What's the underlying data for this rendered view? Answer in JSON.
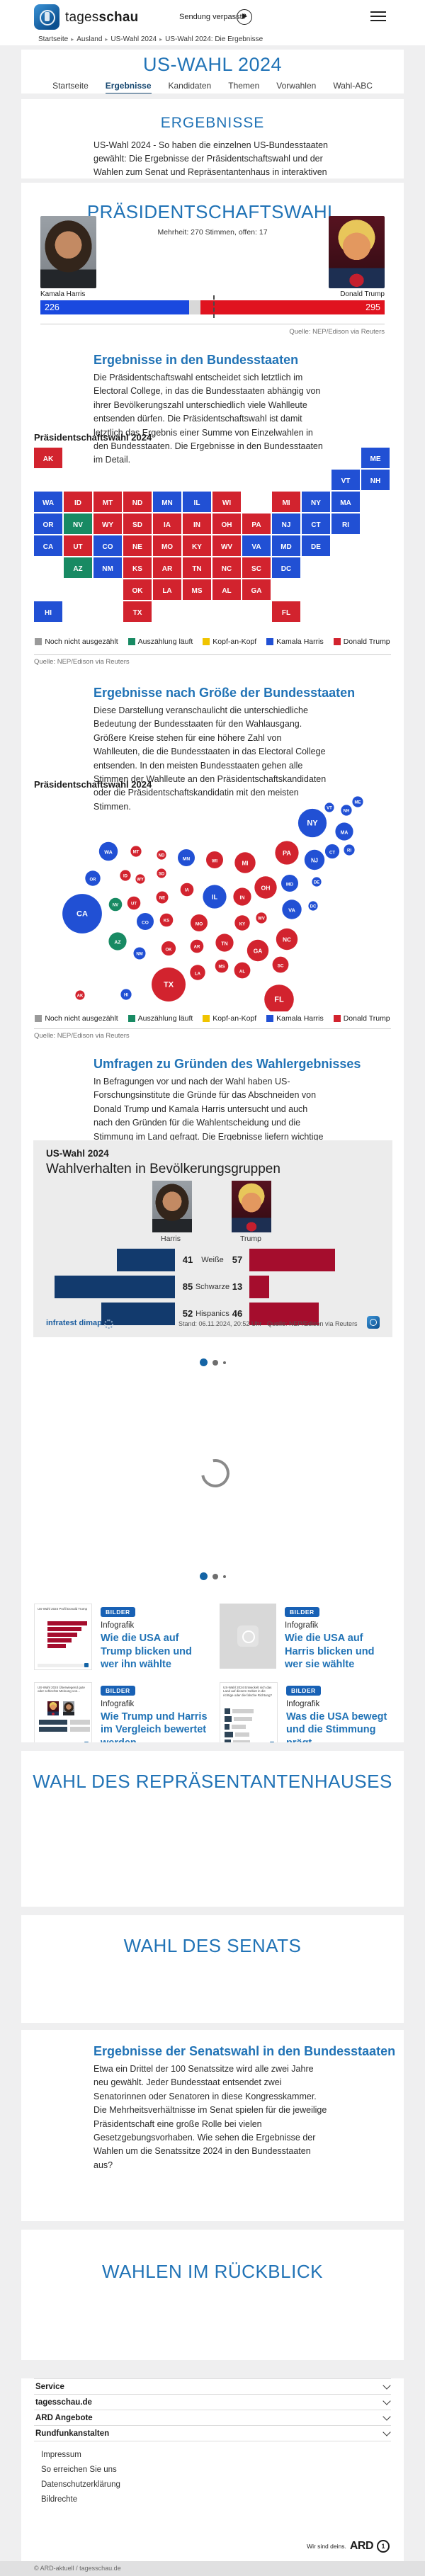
{
  "header": {
    "brand_light": "tages",
    "brand_bold": "schau",
    "sendung": "Sendung verpasst?",
    "breadcrumb": [
      "Startseite",
      "Ausland",
      "US-Wahl 2024",
      "US-Wahl 2024: Die Ergebnisse"
    ]
  },
  "hub": {
    "title": "US-WAHL 2024",
    "tabs": [
      {
        "label": "Startseite",
        "active": false
      },
      {
        "label": "Ergebnisse",
        "active": true
      },
      {
        "label": "Kandidaten",
        "active": false
      },
      {
        "label": "Themen",
        "active": false
      },
      {
        "label": "Vorwahlen",
        "active": false
      },
      {
        "label": "Wahl-ABC",
        "active": false
      }
    ]
  },
  "intro": {
    "heading": "ERGEBNISSE",
    "text": "US-Wahl 2024 - So haben die einzelnen US-Bundesstaaten gewählt: Die Ergebnisse der Präsidentschaftswahl und der Wahlen zum Senat und Repräsentantenhaus in interaktiven Grafiken."
  },
  "praesident": {
    "heading": "PRÄSIDENTSCHAFTSWAHL",
    "majority_note": "Mehrheit: 270 Stimmen, offen: 17",
    "harris_name": "Kamala Harris",
    "harris_votes": "226",
    "trump_name": "Donald Trump",
    "trump_votes": "295",
    "open_votes": 17,
    "total_votes": 538,
    "majority": 270,
    "source": "Quelle: NEP/Edison via Reuters"
  },
  "states_section": {
    "heading": "Ergebnisse in den Bundesstaaten",
    "text": "Die Präsidentschaftswahl entscheidet sich letztlich im Electoral College, in das die Bundesstaaten abhängig von ihrer Bevölkerungszahl unterschiedlich viele Wahlleute entsenden dürfen. Die Präsidentschaftswahl ist damit letztlich das Ergebnis einer Summe von Einzelwahlen in den Bundesstaaten. Die Ergebnisse in den Bundesstaaten im Detail.",
    "chart_label": "Präsidentschaftswahl 2024",
    "source": "Quelle: NEP/Edison via Reuters"
  },
  "size_section": {
    "heading": "Ergebnisse nach Größe der Bundesstaaten",
    "text": "Diese Darstellung veranschaulicht die unterschiedliche Bedeutung der Bundesstaaten für den Wahlausgang. Größere Kreise stehen für eine höhere Zahl von Wahlleuten, die die Bundesstaaten in das Electoral College entsenden. In den meisten Bundesstaaten gehen alle Stimmen der Wahlleute an den Präsidentschaftskandidaten oder die Präsidentschaftskandidatin mit den meisten Stimmen.",
    "chart_label": "Präsidentschaftswahl 2024",
    "source": "Quelle: NEP/Edison via Reuters"
  },
  "umfragen": {
    "heading": "Umfragen zu Gründen des Wahlergebnisses",
    "text": "In Befragungen vor und nach der Wahl haben US-Forschungsinstitute die Gründe für das Abschneiden von Donald Trump und Kamala Harris untersucht und auch nach den Gründen für die Wahlentscheidung und die Stimmung im Land gefragt. Die Ergebnisse liefern wichtige Anhaltspunkte zu den Ursachen des Ergebnisses und zum Wahlverhalten der verschiedenen Bevölkerungsgruppen."
  },
  "colors": {
    "harris": "#2150d4",
    "trump": "#d2232e",
    "counting": "#188a63",
    "open": "#9a9a9a",
    "tie": "#f0c400",
    "bar_harris": "#1a49df",
    "bar_trump": "#e0131f"
  },
  "result_legend": [
    {
      "label": "Noch nicht ausgezählt",
      "color": "#9a9a9a"
    },
    {
      "label": "Auszählung läuft",
      "color": "#188a63"
    },
    {
      "label": "Kopf-an-Kopf",
      "color": "#f0c400"
    },
    {
      "label": "Kamala Harris",
      "color": "#2150d4"
    },
    {
      "label": "Donald Trump",
      "color": "#d2232e"
    }
  ],
  "infografik": {
    "kicker": "US-Wahl 2024",
    "title": "Wahlverhalten in Bevölkerungsgruppen",
    "left_label": "Harris",
    "right_label": "Trump",
    "rows": [
      {
        "label": "Weiße",
        "harris": 41,
        "trump": 57
      },
      {
        "label": "Schwarze",
        "harris": 85,
        "trump": 13
      },
      {
        "label": "Hispanics",
        "harris": 52,
        "trump": 46
      }
    ],
    "logo": "infratest dimap",
    "stand": "Stand: 06.11.2024, 20:52 Uhr",
    "source": "Quelle: NEP/Edison via Reuters"
  },
  "teasers": [
    {
      "badge": "BILDER",
      "kicker": "Infografik",
      "title": "Wie die USA auf Trump blicken und wer ihn wählte",
      "thumb": "chart-trump",
      "thumb_text": "US-Wahl 2024 Profil Donald Trump"
    },
    {
      "badge": "BILDER",
      "kicker": "Infografik",
      "title": "Wie die USA auf Harris blicken und wer sie wählte",
      "thumb": "globe",
      "thumb_text": ""
    },
    {
      "badge": "BILDER",
      "kicker": "Infografik",
      "title": "Wie Trump und Harris im Vergleich bewertet werden",
      "thumb": "compare",
      "thumb_text": "US-Wahl 2024 Überwiegend gute oder schlechte Meinung von..."
    },
    {
      "badge": "BILDER",
      "kicker": "Infografik",
      "title": "Was die USA bewegt und die Stimmung prägt",
      "thumb": "mood",
      "thumb_text": "US-Wahl 2024 Entwickelt sich das Land auf diesem Gebiet in die richtige oder die falsche Richtung?"
    }
  ],
  "house_section": {
    "heading": "WAHL DES REPRÄSENTANTENHAUSES"
  },
  "senate_section": {
    "heading": "WAHL DES SENATS"
  },
  "senate_results": {
    "heading": "Ergebnisse der Senatswahl in den Bundesstaaten",
    "text": "Etwa ein Drittel der 100 Senatssitze wird alle zwei Jahre neu gewählt. Jeder Bundesstaat entsendet zwei Senatorinnen oder Senatoren in diese Kongresskammer. Die Mehrheitsverhältnisse im Senat spielen für die jeweilige Präsidentschaft eine große Rolle bei vielen Gesetzgebungsvorhaben. Wie sehen die Ergebnisse der Wahlen um die Senatssitze 2024 in den Bundesstaaten aus?"
  },
  "retro_section": {
    "heading": "WAHLEN IM RÜCKBLICK"
  },
  "footer": {
    "accordions": [
      "Service",
      "tagesschau.de",
      "ARD Angebote",
      "Rundfunkanstalten"
    ],
    "links": [
      "Impressum",
      "So erreichen Sie uns",
      "Datenschutzerklärung",
      "Bildrechte"
    ],
    "ard_claim": "Wir sind deins.",
    "ard_mark": "ARD",
    "copyright": "© ARD-aktuell / tagesschau.de"
  },
  "chart_data": [
    {
      "type": "choropleth-tile-map",
      "title": "Präsidentschaftswahl 2024",
      "legend": [
        "Noch nicht ausgezählt",
        "Auszählung läuft",
        "Kopf-an-Kopf",
        "Kamala Harris",
        "Donald Trump"
      ],
      "states": [
        {
          "abbr": "AK",
          "status": "trump",
          "col": 0,
          "row": 0
        },
        {
          "abbr": "ME",
          "status": "harris",
          "col": 11,
          "row": 0
        },
        {
          "abbr": "VT",
          "status": "harris",
          "col": 10,
          "row": 1
        },
        {
          "abbr": "NH",
          "status": "harris",
          "col": 11,
          "row": 1
        },
        {
          "abbr": "WA",
          "status": "harris",
          "col": 0,
          "row": 2
        },
        {
          "abbr": "ID",
          "status": "trump",
          "col": 1,
          "row": 2
        },
        {
          "abbr": "MT",
          "status": "trump",
          "col": 2,
          "row": 2
        },
        {
          "abbr": "ND",
          "status": "trump",
          "col": 3,
          "row": 2
        },
        {
          "abbr": "MN",
          "status": "harris",
          "col": 4,
          "row": 2
        },
        {
          "abbr": "IL",
          "status": "harris",
          "col": 5,
          "row": 2
        },
        {
          "abbr": "WI",
          "status": "trump",
          "col": 6,
          "row": 2
        },
        {
          "abbr": "MI",
          "status": "trump",
          "col": 8,
          "row": 2
        },
        {
          "abbr": "NY",
          "status": "harris",
          "col": 9,
          "row": 2
        },
        {
          "abbr": "MA",
          "status": "harris",
          "col": 10,
          "row": 2
        },
        {
          "abbr": "OR",
          "status": "harris",
          "col": 0,
          "row": 3
        },
        {
          "abbr": "NV",
          "status": "counting",
          "col": 1,
          "row": 3
        },
        {
          "abbr": "WY",
          "status": "trump",
          "col": 2,
          "row": 3
        },
        {
          "abbr": "SD",
          "status": "trump",
          "col": 3,
          "row": 3
        },
        {
          "abbr": "IA",
          "status": "trump",
          "col": 4,
          "row": 3
        },
        {
          "abbr": "IN",
          "status": "trump",
          "col": 5,
          "row": 3
        },
        {
          "abbr": "OH",
          "status": "trump",
          "col": 6,
          "row": 3
        },
        {
          "abbr": "PA",
          "status": "trump",
          "col": 7,
          "row": 3
        },
        {
          "abbr": "NJ",
          "status": "harris",
          "col": 8,
          "row": 3
        },
        {
          "abbr": "CT",
          "status": "harris",
          "col": 9,
          "row": 3
        },
        {
          "abbr": "RI",
          "status": "harris",
          "col": 10,
          "row": 3
        },
        {
          "abbr": "CA",
          "status": "harris",
          "col": 0,
          "row": 4
        },
        {
          "abbr": "UT",
          "status": "trump",
          "col": 1,
          "row": 4
        },
        {
          "abbr": "CO",
          "status": "harris",
          "col": 2,
          "row": 4
        },
        {
          "abbr": "NE",
          "status": "trump",
          "col": 3,
          "row": 4
        },
        {
          "abbr": "MO",
          "status": "trump",
          "col": 4,
          "row": 4
        },
        {
          "abbr": "KY",
          "status": "trump",
          "col": 5,
          "row": 4
        },
        {
          "abbr": "WV",
          "status": "trump",
          "col": 6,
          "row": 4
        },
        {
          "abbr": "VA",
          "status": "harris",
          "col": 7,
          "row": 4
        },
        {
          "abbr": "MD",
          "status": "harris",
          "col": 8,
          "row": 4
        },
        {
          "abbr": "DE",
          "status": "harris",
          "col": 9,
          "row": 4
        },
        {
          "abbr": "AZ",
          "status": "counting",
          "col": 1,
          "row": 5
        },
        {
          "abbr": "NM",
          "status": "harris",
          "col": 2,
          "row": 5
        },
        {
          "abbr": "KS",
          "status": "trump",
          "col": 3,
          "row": 5
        },
        {
          "abbr": "AR",
          "status": "trump",
          "col": 4,
          "row": 5
        },
        {
          "abbr": "TN",
          "status": "trump",
          "col": 5,
          "row": 5
        },
        {
          "abbr": "NC",
          "status": "trump",
          "col": 6,
          "row": 5
        },
        {
          "abbr": "SC",
          "status": "trump",
          "col": 7,
          "row": 5
        },
        {
          "abbr": "DC",
          "status": "harris",
          "col": 8,
          "row": 5
        },
        {
          "abbr": "OK",
          "status": "trump",
          "col": 3,
          "row": 6
        },
        {
          "abbr": "LA",
          "status": "trump",
          "col": 4,
          "row": 6
        },
        {
          "abbr": "MS",
          "status": "trump",
          "col": 5,
          "row": 6
        },
        {
          "abbr": "AL",
          "status": "trump",
          "col": 6,
          "row": 6
        },
        {
          "abbr": "GA",
          "status": "trump",
          "col": 7,
          "row": 6
        },
        {
          "abbr": "HI",
          "status": "harris",
          "col": 0,
          "row": 7
        },
        {
          "abbr": "TX",
          "status": "trump",
          "col": 3,
          "row": 7
        },
        {
          "abbr": "FL",
          "status": "trump",
          "col": 8,
          "row": 7
        }
      ]
    },
    {
      "type": "bubble-cartogram",
      "title": "Präsidentschaftswahl 2024",
      "bubbles": [
        {
          "abbr": "WA",
          "ev": 12,
          "status": "harris",
          "x": 123,
          "y": 80
        },
        {
          "abbr": "MT",
          "ev": 4,
          "status": "trump",
          "x": 162,
          "y": 80
        },
        {
          "abbr": "ND",
          "ev": 3,
          "status": "trump",
          "x": 198,
          "y": 85
        },
        {
          "abbr": "MN",
          "ev": 10,
          "status": "harris",
          "x": 233,
          "y": 89
        },
        {
          "abbr": "WI",
          "ev": 10,
          "status": "trump",
          "x": 273,
          "y": 92
        },
        {
          "abbr": "MI",
          "ev": 15,
          "status": "trump",
          "x": 316,
          "y": 96
        },
        {
          "abbr": "PA",
          "ev": 19,
          "status": "trump",
          "x": 375,
          "y": 82
        },
        {
          "abbr": "NY",
          "ev": 28,
          "status": "harris",
          "x": 411,
          "y": 40
        },
        {
          "abbr": "ME",
          "ev": 4,
          "status": "harris",
          "x": 475,
          "y": 10
        },
        {
          "abbr": "VT",
          "ev": 3,
          "status": "harris",
          "x": 435,
          "y": 18
        },
        {
          "abbr": "NH",
          "ev": 4,
          "status": "harris",
          "x": 459,
          "y": 22
        },
        {
          "abbr": "MA",
          "ev": 11,
          "status": "harris",
          "x": 456,
          "y": 52
        },
        {
          "abbr": "CT",
          "ev": 7,
          "status": "harris",
          "x": 439,
          "y": 80
        },
        {
          "abbr": "RI",
          "ev": 4,
          "status": "harris",
          "x": 463,
          "y": 78
        },
        {
          "abbr": "NJ",
          "ev": 14,
          "status": "harris",
          "x": 414,
          "y": 92
        },
        {
          "abbr": "OR",
          "ev": 8,
          "status": "harris",
          "x": 101,
          "y": 118
        },
        {
          "abbr": "ID",
          "ev": 4,
          "status": "trump",
          "x": 147,
          "y": 114
        },
        {
          "abbr": "WY",
          "ev": 3,
          "status": "trump",
          "x": 168,
          "y": 119
        },
        {
          "abbr": "SD",
          "ev": 3,
          "status": "trump",
          "x": 198,
          "y": 111
        },
        {
          "abbr": "IA",
          "ev": 6,
          "status": "trump",
          "x": 234,
          "y": 134
        },
        {
          "abbr": "IL",
          "ev": 19,
          "status": "harris",
          "x": 273,
          "y": 144
        },
        {
          "abbr": "IN",
          "ev": 11,
          "status": "trump",
          "x": 312,
          "y": 144
        },
        {
          "abbr": "OH",
          "ev": 17,
          "status": "trump",
          "x": 345,
          "y": 131
        },
        {
          "abbr": "MD",
          "ev": 10,
          "status": "harris",
          "x": 379,
          "y": 125
        },
        {
          "abbr": "DE",
          "ev": 3,
          "status": "harris",
          "x": 417,
          "y": 123
        },
        {
          "abbr": "CA",
          "ev": 54,
          "status": "harris",
          "x": 86,
          "y": 168
        },
        {
          "abbr": "NV",
          "ev": 6,
          "status": "counting",
          "x": 133,
          "y": 155
        },
        {
          "abbr": "UT",
          "ev": 6,
          "status": "trump",
          "x": 159,
          "y": 153
        },
        {
          "abbr": "NE",
          "ev": 5,
          "status": "trump",
          "x": 199,
          "y": 145
        },
        {
          "abbr": "CO",
          "ev": 10,
          "status": "harris",
          "x": 175,
          "y": 179
        },
        {
          "abbr": "KS",
          "ev": 6,
          "status": "trump",
          "x": 205,
          "y": 177
        },
        {
          "abbr": "MO",
          "ev": 10,
          "status": "trump",
          "x": 251,
          "y": 181
        },
        {
          "abbr": "KY",
          "ev": 8,
          "status": "trump",
          "x": 312,
          "y": 181
        },
        {
          "abbr": "WV",
          "ev": 4,
          "status": "trump",
          "x": 339,
          "y": 174
        },
        {
          "abbr": "VA",
          "ev": 13,
          "status": "harris",
          "x": 382,
          "y": 162
        },
        {
          "abbr": "DC",
          "ev": 3,
          "status": "harris",
          "x": 412,
          "y": 157
        },
        {
          "abbr": "AZ",
          "ev": 11,
          "status": "counting",
          "x": 136,
          "y": 207
        },
        {
          "abbr": "NM",
          "ev": 5,
          "status": "harris",
          "x": 167,
          "y": 224
        },
        {
          "abbr": "OK",
          "ev": 7,
          "status": "trump",
          "x": 208,
          "y": 217
        },
        {
          "abbr": "AR",
          "ev": 6,
          "status": "trump",
          "x": 248,
          "y": 214
        },
        {
          "abbr": "TN",
          "ev": 11,
          "status": "trump",
          "x": 287,
          "y": 209
        },
        {
          "abbr": "NC",
          "ev": 16,
          "status": "trump",
          "x": 375,
          "y": 204
        },
        {
          "abbr": "GA",
          "ev": 16,
          "status": "trump",
          "x": 334,
          "y": 220
        },
        {
          "abbr": "SC",
          "ev": 9,
          "status": "trump",
          "x": 366,
          "y": 240
        },
        {
          "abbr": "MS",
          "ev": 6,
          "status": "trump",
          "x": 283,
          "y": 242
        },
        {
          "abbr": "AL",
          "ev": 9,
          "status": "trump",
          "x": 312,
          "y": 248
        },
        {
          "abbr": "LA",
          "ev": 8,
          "status": "trump",
          "x": 249,
          "y": 251
        },
        {
          "abbr": "TX",
          "ev": 40,
          "status": "trump",
          "x": 208,
          "y": 268
        },
        {
          "abbr": "FL",
          "ev": 30,
          "status": "trump",
          "x": 364,
          "y": 289
        },
        {
          "abbr": "AK",
          "ev": 3,
          "status": "trump",
          "x": 83,
          "y": 283
        },
        {
          "abbr": "HI",
          "ev": 4,
          "status": "harris",
          "x": 148,
          "y": 282
        }
      ]
    },
    {
      "type": "bar",
      "title": "Wahlverhalten in Bevölkerungsgruppen",
      "categories": [
        "Weiße",
        "Schwarze",
        "Hispanics"
      ],
      "series": [
        {
          "name": "Harris",
          "values": [
            41,
            85,
            52
          ]
        },
        {
          "name": "Trump",
          "values": [
            57,
            13,
            46
          ]
        }
      ],
      "xlim": [
        0,
        100
      ]
    }
  ]
}
